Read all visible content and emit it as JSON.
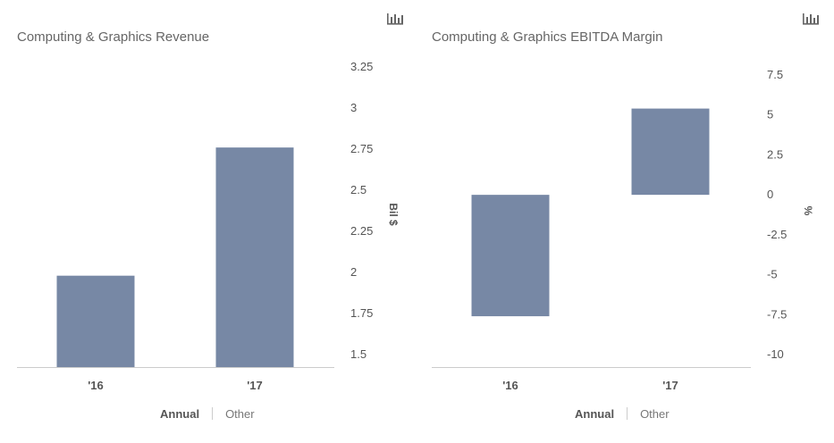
{
  "charts": {
    "left": {
      "title": "Computing & Graphics Revenue",
      "ylabel": "Bil $",
      "toggle": {
        "active": "Annual",
        "inactive": "Other"
      }
    },
    "right": {
      "title": "Computing & Graphics EBITDA Margin",
      "ylabel": "%",
      "toggle": {
        "active": "Annual",
        "inactive": "Other"
      }
    }
  },
  "colors": {
    "bar": "#7788a5",
    "axis": "#cccccc",
    "icon": "#666666"
  },
  "icons": {
    "menu": "bar-chart-icon"
  },
  "chart_data": [
    {
      "type": "bar",
      "title": "Computing & Graphics Revenue",
      "ylabel": "Bil $",
      "categories": [
        "'16",
        "'17"
      ],
      "values": [
        1.98,
        2.76
      ],
      "ylim": [
        1.5,
        3.25
      ],
      "yticks": [
        1.5,
        1.75,
        2,
        2.25,
        2.5,
        2.75,
        3,
        3.25
      ],
      "ytick_labels": [
        "1.5",
        "1.75",
        "2",
        "2.25",
        "2.5",
        "2.75",
        "3",
        "3.25"
      ],
      "grid": false
    },
    {
      "type": "bar",
      "title": "Computing & Graphics EBITDA Margin",
      "ylabel": "%",
      "categories": [
        "'16",
        "'17"
      ],
      "values": [
        -7.6,
        5.4
      ],
      "ylim": [
        -10,
        7.5
      ],
      "yticks": [
        -10,
        -7.5,
        -5,
        -2.5,
        0,
        2.5,
        5,
        7.5
      ],
      "ytick_labels": [
        "-10",
        "-7.5",
        "-5",
        "-2.5",
        "0",
        "2.5",
        "5",
        "7.5"
      ],
      "grid": false
    }
  ]
}
